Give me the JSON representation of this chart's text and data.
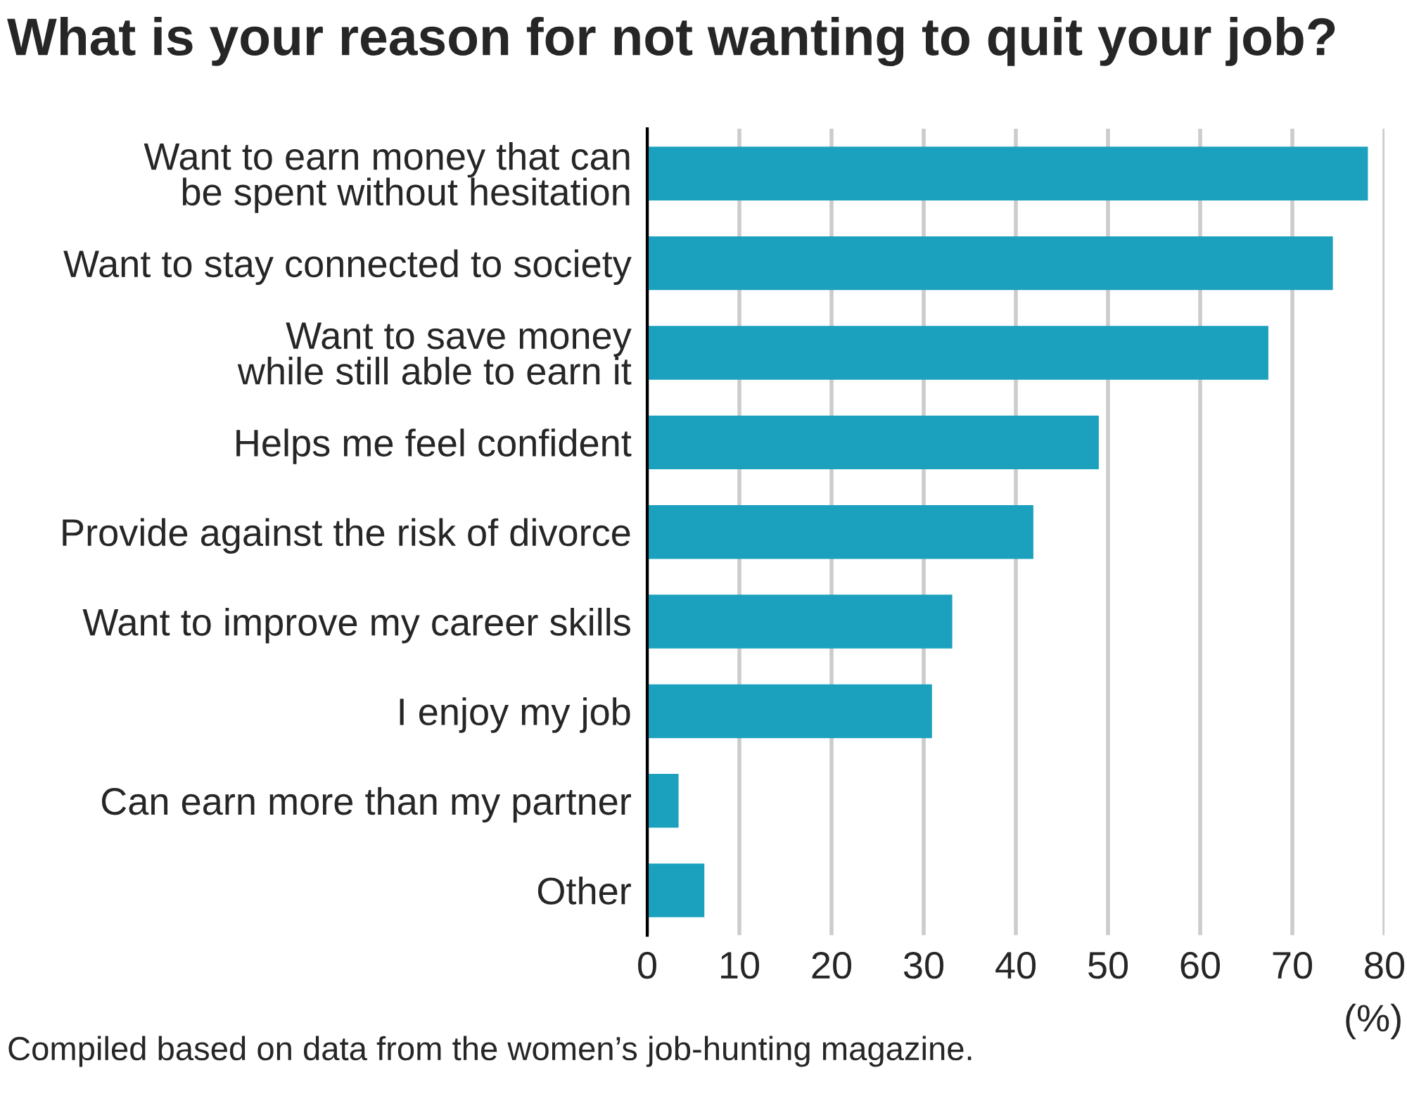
{
  "chart_data": {
    "type": "bar",
    "orientation": "horizontal",
    "title": "What is your reason for not wanting to quit your job?",
    "categories": [
      "Want to earn money that can\nbe spent without hesitation",
      "Want to stay connected to society",
      "Want to save money\nwhile still able to earn it",
      "Helps me feel confident",
      "Provide against the risk of divorce",
      "Want to improve my career skills",
      "I enjoy my job",
      "Can earn more than my partner",
      "Other"
    ],
    "values": [
      78.2,
      74.4,
      67.4,
      49.0,
      41.9,
      33.1,
      30.9,
      3.4,
      6.2
    ],
    "color": "#1ba1be",
    "xlabel": "(%)",
    "xlim": [
      0,
      80
    ],
    "xticks": [
      0,
      10,
      20,
      30,
      40,
      50,
      60,
      70,
      80
    ],
    "grid": "x",
    "annotations": [
      "Compiled based on data from the women’s job-hunting magazine."
    ]
  }
}
